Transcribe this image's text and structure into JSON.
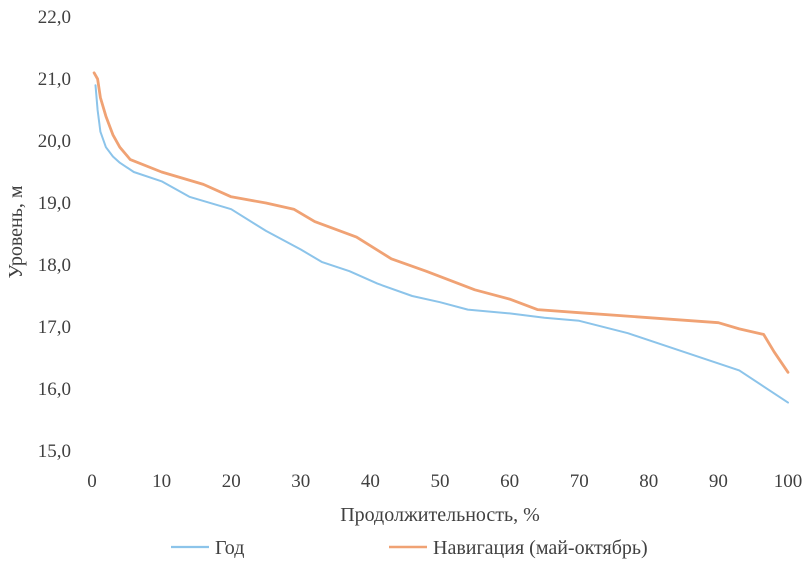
{
  "chart_data": {
    "type": "line",
    "title": "",
    "xlabel": "Продолжительность, %",
    "ylabel": "Уровень, м",
    "xlim": [
      0,
      100
    ],
    "ylim": [
      15.0,
      22.0
    ],
    "x_ticks": [
      "0",
      "10",
      "20",
      "30",
      "40",
      "50",
      "60",
      "70",
      "80",
      "90",
      "100"
    ],
    "y_ticks": [
      "15,0",
      "16,0",
      "17,0",
      "18,0",
      "19,0",
      "20,0",
      "21,0",
      "22,0"
    ],
    "grid": false,
    "legend_position": "bottom",
    "series": [
      {
        "name": "Год",
        "color": "#8cc4ea",
        "points": [
          [
            0.5,
            20.9
          ],
          [
            0.8,
            20.5
          ],
          [
            1.2,
            20.15
          ],
          [
            2,
            19.9
          ],
          [
            3,
            19.75
          ],
          [
            4,
            19.65
          ],
          [
            6,
            19.5
          ],
          [
            10,
            19.35
          ],
          [
            14,
            19.1
          ],
          [
            20,
            18.9
          ],
          [
            25,
            18.55
          ],
          [
            30,
            18.25
          ],
          [
            33,
            18.05
          ],
          [
            37,
            17.9
          ],
          [
            41,
            17.7
          ],
          [
            46,
            17.5
          ],
          [
            50,
            17.4
          ],
          [
            54,
            17.28
          ],
          [
            60,
            17.22
          ],
          [
            65,
            17.15
          ],
          [
            70,
            17.1
          ],
          [
            77,
            16.9
          ],
          [
            85,
            16.6
          ],
          [
            93,
            16.3
          ],
          [
            100,
            15.78
          ]
        ]
      },
      {
        "name": "Навигация (май-октябрь)",
        "color": "#f0a274",
        "points": [
          [
            0.3,
            21.1
          ],
          [
            0.8,
            21.0
          ],
          [
            1.2,
            20.7
          ],
          [
            2,
            20.4
          ],
          [
            3,
            20.1
          ],
          [
            4,
            19.9
          ],
          [
            5.5,
            19.7
          ],
          [
            10,
            19.5
          ],
          [
            16,
            19.3
          ],
          [
            20,
            19.1
          ],
          [
            25,
            19.0
          ],
          [
            29,
            18.9
          ],
          [
            32,
            18.7
          ],
          [
            38,
            18.45
          ],
          [
            43,
            18.1
          ],
          [
            48,
            17.9
          ],
          [
            55,
            17.6
          ],
          [
            60,
            17.45
          ],
          [
            64,
            17.28
          ],
          [
            70,
            17.23
          ],
          [
            80,
            17.15
          ],
          [
            90,
            17.07
          ],
          [
            93,
            16.97
          ],
          [
            96.5,
            16.88
          ],
          [
            98,
            16.6
          ],
          [
            100,
            16.27
          ]
        ]
      }
    ]
  }
}
